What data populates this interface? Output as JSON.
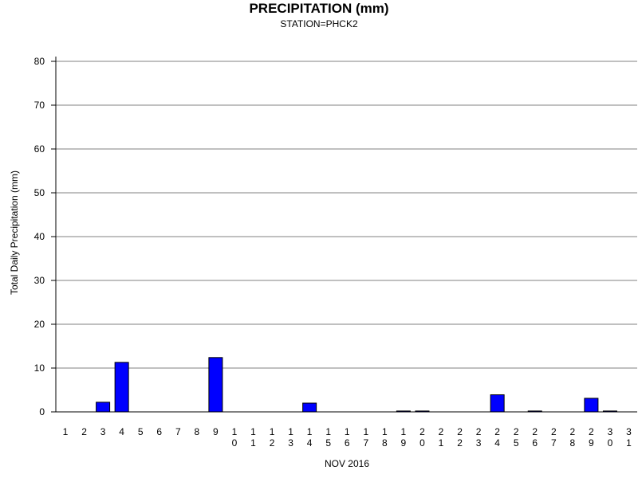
{
  "chart_data": {
    "type": "bar",
    "title": "PRECIPITATION (mm)",
    "subtitle": "STATION=PHCK2",
    "xlabel": "NOV 2016",
    "ylabel": "Total Daily Precipitation (mm)",
    "ylim": [
      0,
      80
    ],
    "yticks": [
      0,
      10,
      20,
      30,
      40,
      50,
      60,
      70,
      80
    ],
    "grid": true,
    "bar_color": "#0000ff",
    "categories": [
      "1",
      "2",
      "3",
      "4",
      "5",
      "6",
      "7",
      "8",
      "9",
      "10",
      "11",
      "12",
      "13",
      "14",
      "15",
      "16",
      "17",
      "18",
      "19",
      "20",
      "21",
      "22",
      "23",
      "24",
      "25",
      "26",
      "27",
      "28",
      "29",
      "30",
      "31"
    ],
    "values": [
      0,
      0,
      2.2,
      11.3,
      0,
      0,
      0,
      0,
      12.4,
      0,
      0,
      0,
      0,
      2.0,
      0,
      0,
      0,
      0,
      0.2,
      0.2,
      0,
      0,
      0,
      3.9,
      0,
      0.2,
      0,
      0,
      3.1,
      0.2,
      0
    ]
  }
}
